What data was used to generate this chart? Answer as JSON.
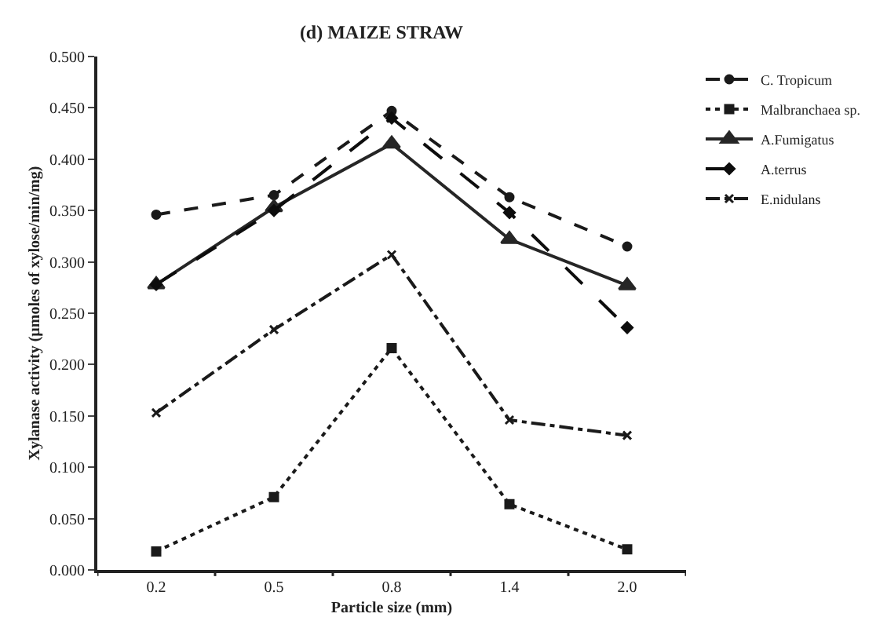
{
  "chart_data": {
    "type": "line",
    "title": "(d) MAIZE STRAW",
    "xlabel": "Particle size (mm)",
    "ylabel": "Xylanase activity (µmoles of xylose/min/mg)",
    "categories": [
      "0.2",
      "0.5",
      "0.8",
      "1.4",
      "2.0"
    ],
    "series": [
      {
        "name": "C. Tropicum",
        "color": "#1a1a1a",
        "line_style": "dashed",
        "marker": "circle",
        "values": [
          0.346,
          0.365,
          0.447,
          0.363,
          0.315
        ]
      },
      {
        "name": "Malbranchaea sp.",
        "color": "#1a1a1a",
        "line_style": "dotted",
        "marker": "square",
        "values": [
          0.018,
          0.071,
          0.216,
          0.064,
          0.02
        ]
      },
      {
        "name": "A.Fumigatus",
        "color": "#262626",
        "line_style": "solid",
        "marker": "triangle",
        "values": [
          0.278,
          0.353,
          0.415,
          0.322,
          0.277
        ]
      },
      {
        "name": "A.terrus",
        "color": "#0d0d0d",
        "line_style": "longdash",
        "marker": "diamond",
        "values": [
          0.278,
          0.35,
          0.44,
          0.348,
          0.236
        ]
      },
      {
        "name": "E.nidulans",
        "color": "#1a1a1a",
        "line_style": "dashdot",
        "marker": "cross",
        "values": [
          0.153,
          0.234,
          0.307,
          0.146,
          0.131
        ]
      }
    ],
    "ylim": [
      0,
      0.5
    ],
    "yticks": [
      {
        "value": 0,
        "label": "0.000"
      },
      {
        "value": 0.05,
        "label": "0.050"
      },
      {
        "value": 0.1,
        "label": "0.100"
      },
      {
        "value": 0.15,
        "label": "0.150"
      },
      {
        "value": 0.2,
        "label": "0.200"
      },
      {
        "value": 0.25,
        "label": "0.250"
      },
      {
        "value": 0.3,
        "label": "0.300"
      },
      {
        "value": 0.35,
        "label": "0.350"
      },
      {
        "value": 0.4,
        "label": "0.400"
      },
      {
        "value": 0.45,
        "label": "0.450"
      },
      {
        "value": 0.5,
        "label": "0.500"
      }
    ],
    "legend": "top right"
  }
}
